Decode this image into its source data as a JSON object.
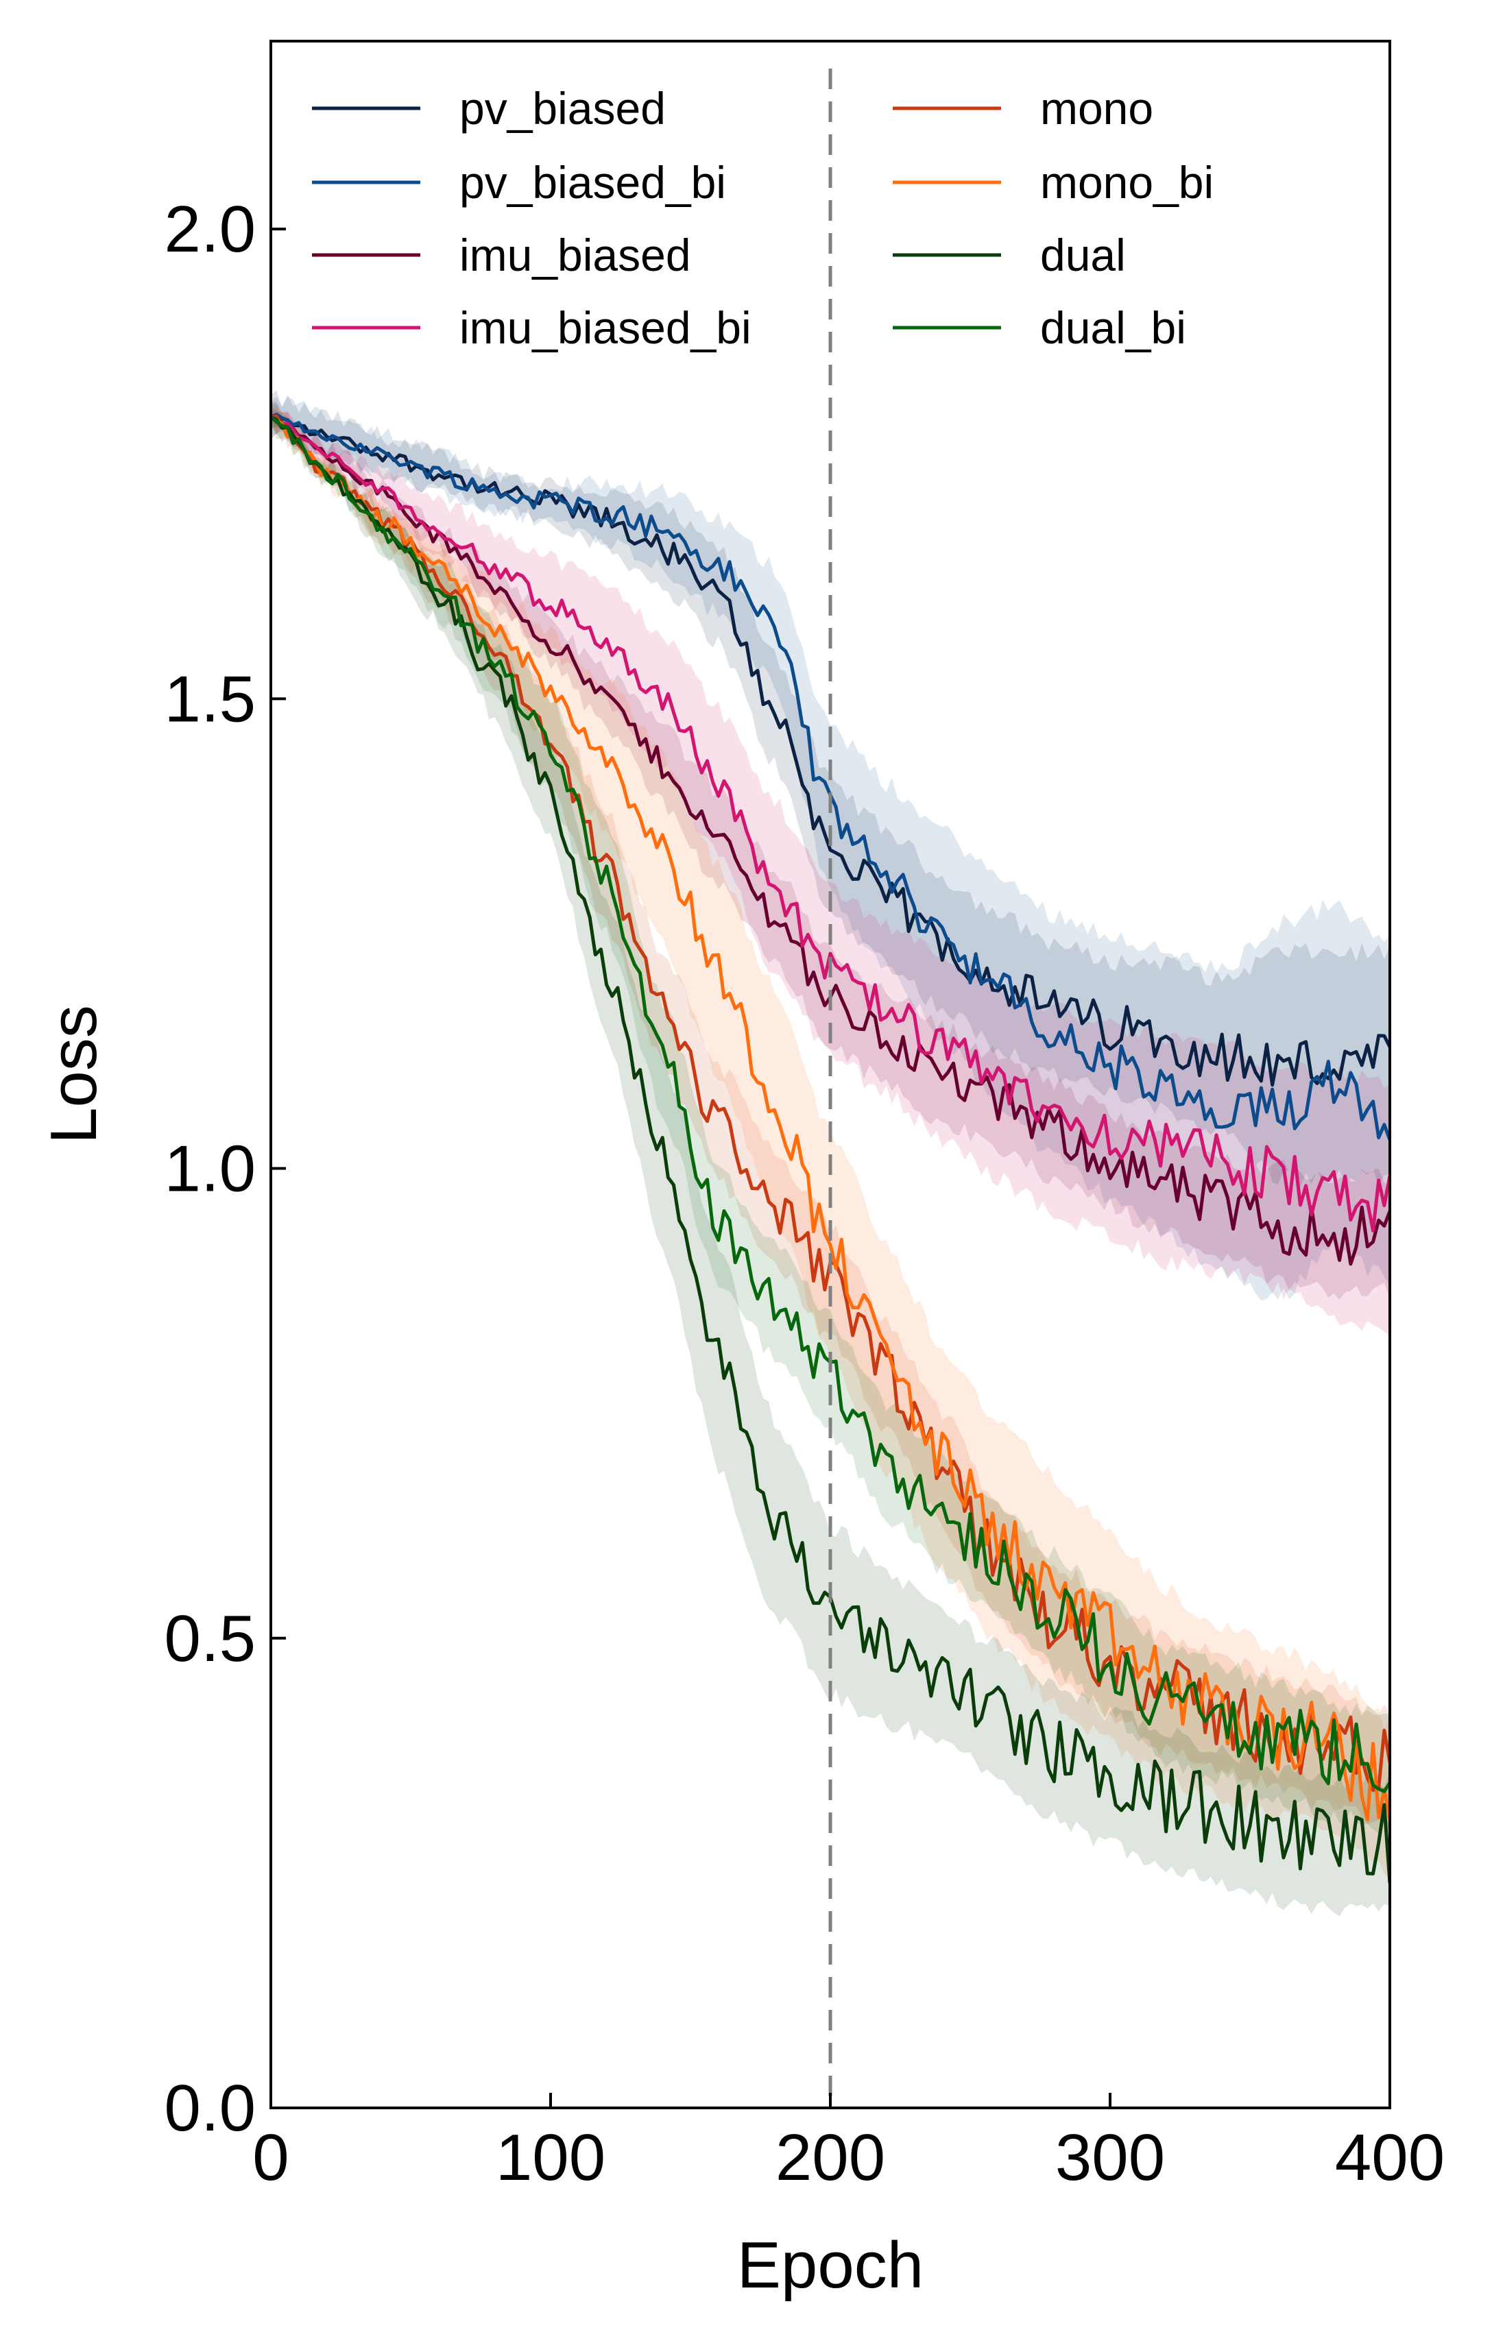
{
  "chart_data": {
    "type": "line",
    "title": "",
    "xlabel": "Epoch",
    "ylabel": "Loss",
    "xlim": [
      0,
      400
    ],
    "ylim": [
      0,
      2.2
    ],
    "xticks": [
      0,
      100,
      200,
      300,
      400
    ],
    "xtick_labels": [
      "0",
      "100",
      "200",
      "300",
      "400"
    ],
    "yticks": [
      0,
      0.5,
      1.0,
      1.5,
      2.0
    ],
    "ytick_labels": [
      "0.0",
      "0.5",
      "1.0",
      "1.5",
      "2.0"
    ],
    "grid": false,
    "legend_position": "top",
    "legend_columns": 2,
    "reference_line": {
      "x": 200,
      "style": "dashed",
      "color": "#808080"
    },
    "x": [
      0,
      20,
      40,
      60,
      80,
      100,
      120,
      140,
      160,
      180,
      200,
      220,
      240,
      260,
      280,
      300,
      320,
      340,
      360,
      380,
      400
    ],
    "series": [
      {
        "name": "pv_biased",
        "color": "#0b2245",
        "values": [
          1.8,
          1.78,
          1.76,
          1.74,
          1.72,
          1.71,
          1.69,
          1.66,
          1.61,
          1.49,
          1.34,
          1.29,
          1.24,
          1.2,
          1.17,
          1.15,
          1.14,
          1.12,
          1.11,
          1.11,
          1.11
        ],
        "band": [
          0.02,
          0.02,
          0.02,
          0.02,
          0.02,
          0.02,
          0.03,
          0.04,
          0.05,
          0.06,
          0.07,
          0.07,
          0.07,
          0.07,
          0.07,
          0.07,
          0.08,
          0.08,
          0.12,
          0.12,
          0.12
        ]
      },
      {
        "name": "pv_biased_bi",
        "color": "#0d4c8c",
        "values": [
          1.8,
          1.78,
          1.76,
          1.74,
          1.72,
          1.71,
          1.7,
          1.68,
          1.64,
          1.58,
          1.38,
          1.31,
          1.25,
          1.19,
          1.14,
          1.11,
          1.08,
          1.05,
          1.06,
          1.1,
          1.06
        ],
        "band": [
          0.02,
          0.02,
          0.02,
          0.02,
          0.02,
          0.02,
          0.03,
          0.04,
          0.05,
          0.06,
          0.09,
          0.1,
          0.11,
          0.12,
          0.13,
          0.14,
          0.15,
          0.16,
          0.2,
          0.18,
          0.18
        ]
      },
      {
        "name": "imu_biased",
        "color": "#67002e",
        "values": [
          1.8,
          1.76,
          1.72,
          1.67,
          1.62,
          1.56,
          1.5,
          1.43,
          1.35,
          1.27,
          1.18,
          1.14,
          1.1,
          1.07,
          1.04,
          1.01,
          0.98,
          0.96,
          0.94,
          0.93,
          0.93
        ],
        "band": [
          0.01,
          0.01,
          0.01,
          0.01,
          0.02,
          0.02,
          0.03,
          0.04,
          0.05,
          0.05,
          0.05,
          0.05,
          0.05,
          0.05,
          0.05,
          0.05,
          0.05,
          0.05,
          0.06,
          0.06,
          0.06
        ]
      },
      {
        "name": "imu_biased_bi",
        "color": "#d31470",
        "values": [
          1.8,
          1.76,
          1.72,
          1.68,
          1.64,
          1.6,
          1.56,
          1.5,
          1.41,
          1.3,
          1.21,
          1.17,
          1.13,
          1.09,
          1.06,
          1.04,
          1.02,
          1.01,
          0.99,
          0.97,
          0.96
        ],
        "band": [
          0.01,
          0.01,
          0.02,
          0.03,
          0.04,
          0.05,
          0.06,
          0.07,
          0.08,
          0.09,
          0.09,
          0.09,
          0.1,
          0.1,
          0.11,
          0.11,
          0.12,
          0.12,
          0.12,
          0.13,
          0.13
        ]
      },
      {
        "name": "mono",
        "color": "#c93a12",
        "values": [
          1.8,
          1.74,
          1.69,
          1.63,
          1.55,
          1.45,
          1.32,
          1.17,
          1.05,
          0.96,
          0.88,
          0.78,
          0.68,
          0.58,
          0.52,
          0.48,
          0.44,
          0.42,
          0.4,
          0.38,
          0.36
        ],
        "band": [
          0.01,
          0.01,
          0.02,
          0.03,
          0.04,
          0.05,
          0.06,
          0.06,
          0.06,
          0.06,
          0.06,
          0.06,
          0.06,
          0.06,
          0.06,
          0.06,
          0.06,
          0.06,
          0.06,
          0.06,
          0.06
        ]
      },
      {
        "name": "mono_bi",
        "color": "#ff6d0d",
        "values": [
          1.8,
          1.74,
          1.69,
          1.64,
          1.58,
          1.51,
          1.44,
          1.34,
          1.21,
          1.07,
          0.92,
          0.8,
          0.69,
          0.61,
          0.55,
          0.5,
          0.45,
          0.42,
          0.4,
          0.38,
          0.33
        ],
        "band": [
          0.01,
          0.01,
          0.02,
          0.03,
          0.04,
          0.06,
          0.08,
          0.1,
          0.11,
          0.12,
          0.12,
          0.12,
          0.12,
          0.12,
          0.12,
          0.11,
          0.1,
          0.09,
          0.09,
          0.08,
          0.08
        ]
      },
      {
        "name": "dual",
        "color": "#0b3d0b",
        "values": [
          1.8,
          1.74,
          1.68,
          1.61,
          1.52,
          1.4,
          1.21,
          1.02,
          0.8,
          0.63,
          0.53,
          0.49,
          0.46,
          0.42,
          0.38,
          0.35,
          0.33,
          0.31,
          0.29,
          0.28,
          0.28
        ],
        "band": [
          0.01,
          0.01,
          0.02,
          0.03,
          0.04,
          0.05,
          0.07,
          0.1,
          0.12,
          0.1,
          0.09,
          0.08,
          0.07,
          0.07,
          0.07,
          0.07,
          0.07,
          0.07,
          0.07,
          0.07,
          0.07
        ]
      },
      {
        "name": "dual_bi",
        "color": "#07670d",
        "values": [
          1.8,
          1.74,
          1.68,
          1.62,
          1.54,
          1.45,
          1.31,
          1.12,
          0.94,
          0.86,
          0.78,
          0.69,
          0.63,
          0.58,
          0.53,
          0.48,
          0.43,
          0.41,
          0.39,
          0.37,
          0.36
        ],
        "band": [
          0.01,
          0.01,
          0.02,
          0.03,
          0.04,
          0.05,
          0.06,
          0.06,
          0.06,
          0.06,
          0.06,
          0.06,
          0.06,
          0.06,
          0.06,
          0.06,
          0.06,
          0.06,
          0.06,
          0.06,
          0.06
        ]
      }
    ]
  }
}
